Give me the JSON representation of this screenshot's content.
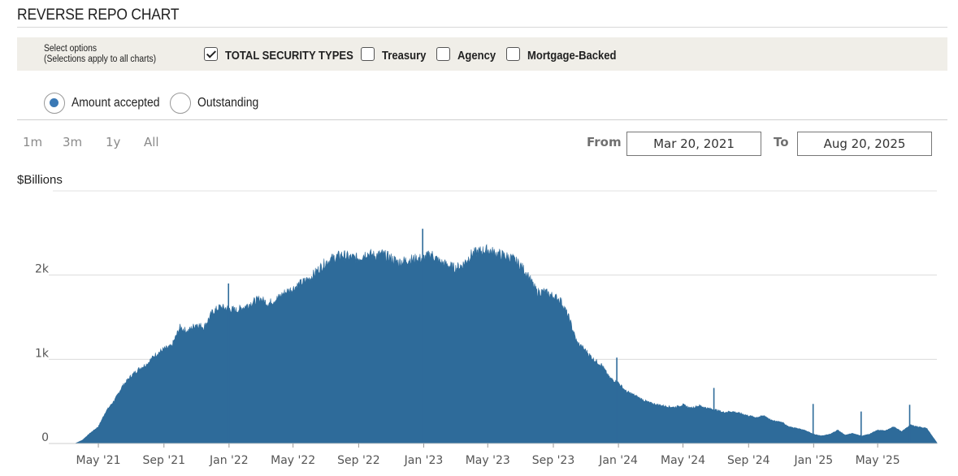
{
  "page": {
    "title": "REVERSE REPO CHART"
  },
  "options": {
    "help_line1": "Select options",
    "help_line2": "(Selections apply to all charts)",
    "checkboxes": [
      {
        "label": "TOTAL SECURITY TYPES",
        "checked": true
      },
      {
        "label": "Treasury",
        "checked": false
      },
      {
        "label": "Agency",
        "checked": false
      },
      {
        "label": "Mortgage-Backed",
        "checked": false
      }
    ]
  },
  "view": {
    "radios": [
      {
        "label": "Amount accepted",
        "selected": true
      },
      {
        "label": "Outstanding",
        "selected": false
      }
    ]
  },
  "range": {
    "buttons": [
      "1m",
      "3m",
      "1y",
      "All"
    ],
    "from_label": "From",
    "from_value": "Mar 20, 2021",
    "to_label": "To",
    "to_value": "Aug 20, 2025"
  },
  "chart_data": {
    "type": "area",
    "title": "",
    "ylabel": "$Billions",
    "xlabel": "",
    "ylim": [
      0,
      3000
    ],
    "y_ticks": [
      {
        "value": 0,
        "label": "0"
      },
      {
        "value": 1000,
        "label": "1k"
      },
      {
        "value": 2000,
        "label": "2k"
      }
    ],
    "x_ticks": [
      "May '21",
      "Sep '21",
      "Jan '22",
      "May '22",
      "Sep '22",
      "Jan '23",
      "May '23",
      "Sep '23",
      "Jan '24",
      "May '24",
      "Sep '24",
      "Jan '25",
      "May '25"
    ],
    "grid": true,
    "color": "#2e6b9a",
    "series": [
      {
        "name": "",
        "x": [
          "2021-03-20",
          "2021-04-01",
          "2021-04-15",
          "2021-05-01",
          "2021-05-15",
          "2021-06-01",
          "2021-06-15",
          "2021-07-01",
          "2021-07-15",
          "2021-08-01",
          "2021-08-15",
          "2021-09-01",
          "2021-09-15",
          "2021-10-01",
          "2021-10-15",
          "2021-11-01",
          "2021-11-15",
          "2021-12-01",
          "2021-12-15",
          "2022-01-01",
          "2022-01-15",
          "2022-02-01",
          "2022-02-15",
          "2022-03-01",
          "2022-03-15",
          "2022-04-01",
          "2022-04-15",
          "2022-05-01",
          "2022-05-15",
          "2022-06-01",
          "2022-06-15",
          "2022-07-01",
          "2022-07-15",
          "2022-08-01",
          "2022-08-15",
          "2022-09-01",
          "2022-09-15",
          "2022-10-01",
          "2022-10-15",
          "2022-11-01",
          "2022-11-15",
          "2022-12-01",
          "2022-12-15",
          "2023-01-01",
          "2023-01-15",
          "2023-02-01",
          "2023-02-15",
          "2023-03-01",
          "2023-03-15",
          "2023-04-01",
          "2023-04-15",
          "2023-05-01",
          "2023-05-15",
          "2023-06-01",
          "2023-06-15",
          "2023-07-01",
          "2023-07-15",
          "2023-08-01",
          "2023-08-15",
          "2023-09-01",
          "2023-09-15",
          "2023-10-01",
          "2023-10-15",
          "2023-11-01",
          "2023-11-15",
          "2023-12-01",
          "2023-12-15",
          "2024-01-01",
          "2024-01-15",
          "2024-02-01",
          "2024-02-15",
          "2024-03-01",
          "2024-03-15",
          "2024-04-01",
          "2024-04-15",
          "2024-05-01",
          "2024-05-15",
          "2024-06-01",
          "2024-06-15",
          "2024-07-01",
          "2024-07-15",
          "2024-08-01",
          "2024-08-15",
          "2024-09-01",
          "2024-09-15",
          "2024-10-01",
          "2024-10-15",
          "2024-11-01",
          "2024-11-15",
          "2024-12-01",
          "2024-12-15",
          "2025-01-01",
          "2025-01-15",
          "2025-02-01",
          "2025-02-15",
          "2025-03-01",
          "2025-03-15",
          "2025-04-01",
          "2025-04-15",
          "2025-05-01",
          "2025-05-15",
          "2025-06-01",
          "2025-06-15",
          "2025-07-01",
          "2025-07-15",
          "2025-08-01",
          "2025-08-20"
        ],
        "values": [
          5,
          40,
          120,
          200,
          380,
          520,
          680,
          800,
          880,
          950,
          1050,
          1120,
          1150,
          1380,
          1330,
          1420,
          1380,
          1560,
          1620,
          1600,
          1580,
          1630,
          1680,
          1720,
          1660,
          1720,
          1790,
          1840,
          1900,
          1960,
          2050,
          2150,
          2200,
          2240,
          2210,
          2200,
          2260,
          2230,
          2250,
          2200,
          2150,
          2180,
          2190,
          2200,
          2250,
          2150,
          2120,
          2080,
          2120,
          2250,
          2280,
          2300,
          2260,
          2230,
          2200,
          2120,
          2000,
          1800,
          1800,
          1750,
          1700,
          1480,
          1200,
          1100,
          1000,
          930,
          780,
          720,
          620,
          570,
          520,
          480,
          460,
          440,
          430,
          460,
          420,
          450,
          420,
          400,
          370,
          380,
          360,
          330,
          310,
          330,
          270,
          260,
          200,
          180,
          160,
          110,
          90,
          110,
          160,
          100,
          120,
          90,
          110,
          160,
          150,
          200,
          140,
          220,
          200,
          180,
          10
        ]
      }
    ],
    "spikes": [
      {
        "x": "2021-12-31",
        "value": 1900
      },
      {
        "x": "2022-12-30",
        "value": 2550
      },
      {
        "x": "2023-12-29",
        "value": 1020
      },
      {
        "x": "2024-06-28",
        "value": 660
      },
      {
        "x": "2024-12-31",
        "value": 470
      },
      {
        "x": "2025-03-31",
        "value": 380
      },
      {
        "x": "2025-06-30",
        "value": 460
      }
    ]
  }
}
